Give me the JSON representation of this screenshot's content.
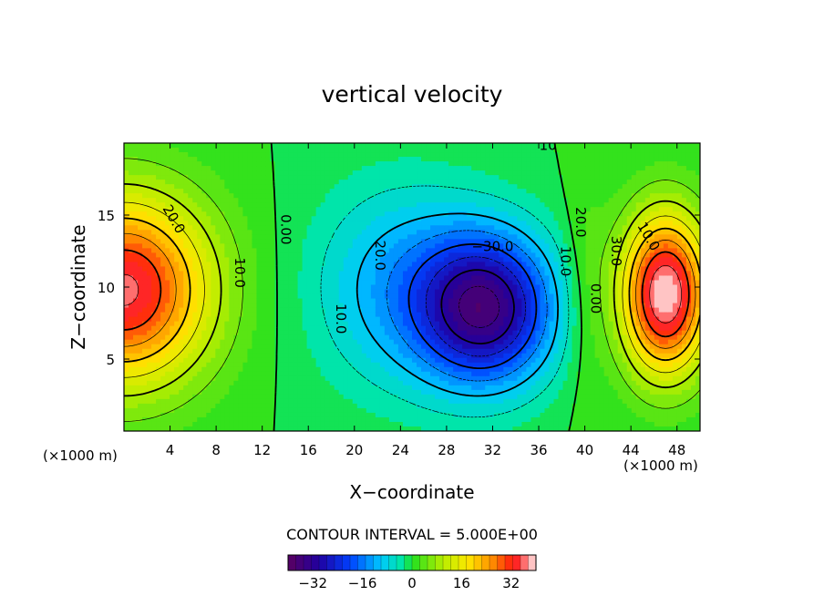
{
  "chart_data": {
    "type": "heatmap",
    "title": "vertical velocity",
    "xlabel": "X−coordinate",
    "ylabel": "Z−coordinate",
    "x_unit": "(×1000 m)",
    "xlim": [
      0,
      50
    ],
    "ylim": [
      0,
      20
    ],
    "x_ticks": [
      "4",
      "8",
      "12",
      "16",
      "20",
      "24",
      "28",
      "32",
      "36",
      "40",
      "44",
      "48"
    ],
    "y_ticks": [
      "5",
      "10",
      "15"
    ],
    "contour_labels": [
      "20.0",
      "10.0",
      "0.00",
      "20.0",
      "−30.0",
      "10.0",
      "10.0",
      "0.00",
      "20.0",
      "30.0",
      "10.0",
      "10"
    ],
    "contour_interval_text": "CONTOUR INTERVAL = 5.000E+00",
    "colorbar": {
      "min": -40,
      "max": 40,
      "ticks": [
        "−32",
        "−16",
        "0",
        "16",
        "32"
      ]
    },
    "grid": false,
    "legend": "none"
  }
}
